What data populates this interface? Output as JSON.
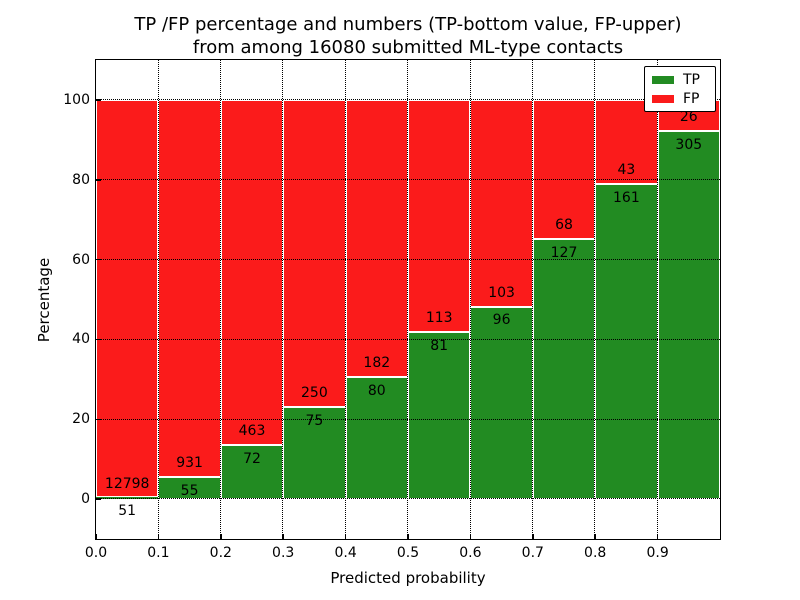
{
  "title": {
    "line1": "TP /FP percentage and numbers (TP-bottom value, FP-upper)",
    "line2": "from among 16080 submitted ML-type contacts"
  },
  "axes": {
    "xlabel": "Predicted probability",
    "ylabel": "Percentage",
    "x_tick_labels": [
      "0.0",
      "0.1",
      "0.2",
      "0.3",
      "0.4",
      "0.5",
      "0.6",
      "0.7",
      "0.8",
      "0.9"
    ],
    "y_tick_labels": [
      "0",
      "20",
      "40",
      "60",
      "80",
      "100"
    ]
  },
  "legend": {
    "items": [
      {
        "label": "TP",
        "color": "#228b22"
      },
      {
        "label": "FP",
        "color": "#fb1b1b"
      }
    ]
  },
  "colors": {
    "tp": "#228b22",
    "fp": "#fb1b1b",
    "background": "#ffffff",
    "text": "#000000",
    "bar_edge": "#ffffff",
    "grid": "#000000"
  },
  "chart_data": {
    "type": "bar",
    "stacked": true,
    "normalized_to_percent": true,
    "title": "TP /FP percentage and numbers (TP-bottom value, FP-upper) from among 16080 submitted ML-type contacts",
    "xlabel": "Predicted probability",
    "ylabel": "Percentage",
    "bin_edges": [
      0.0,
      0.1,
      0.2,
      0.3,
      0.4,
      0.5,
      0.6,
      0.7,
      0.8,
      0.9,
      1.0
    ],
    "series": [
      {
        "name": "TP",
        "color": "#228b22",
        "counts": [
          51,
          55,
          72,
          75,
          80,
          81,
          96,
          127,
          161,
          305
        ]
      },
      {
        "name": "FP",
        "color": "#fb1b1b",
        "counts": [
          12798,
          931,
          463,
          250,
          182,
          113,
          103,
          68,
          43,
          26
        ]
      }
    ],
    "tp_percent": [
      0.4,
      5.58,
      13.46,
      23.08,
      30.53,
      41.75,
      48.24,
      65.13,
      78.92,
      92.15
    ],
    "total_contacts": 16080,
    "xlim": [
      0.0,
      1.0
    ],
    "ylim": [
      -10,
      110
    ],
    "grid": {
      "style": "dotted",
      "color": "#000000"
    },
    "legend_position": "upper right"
  }
}
